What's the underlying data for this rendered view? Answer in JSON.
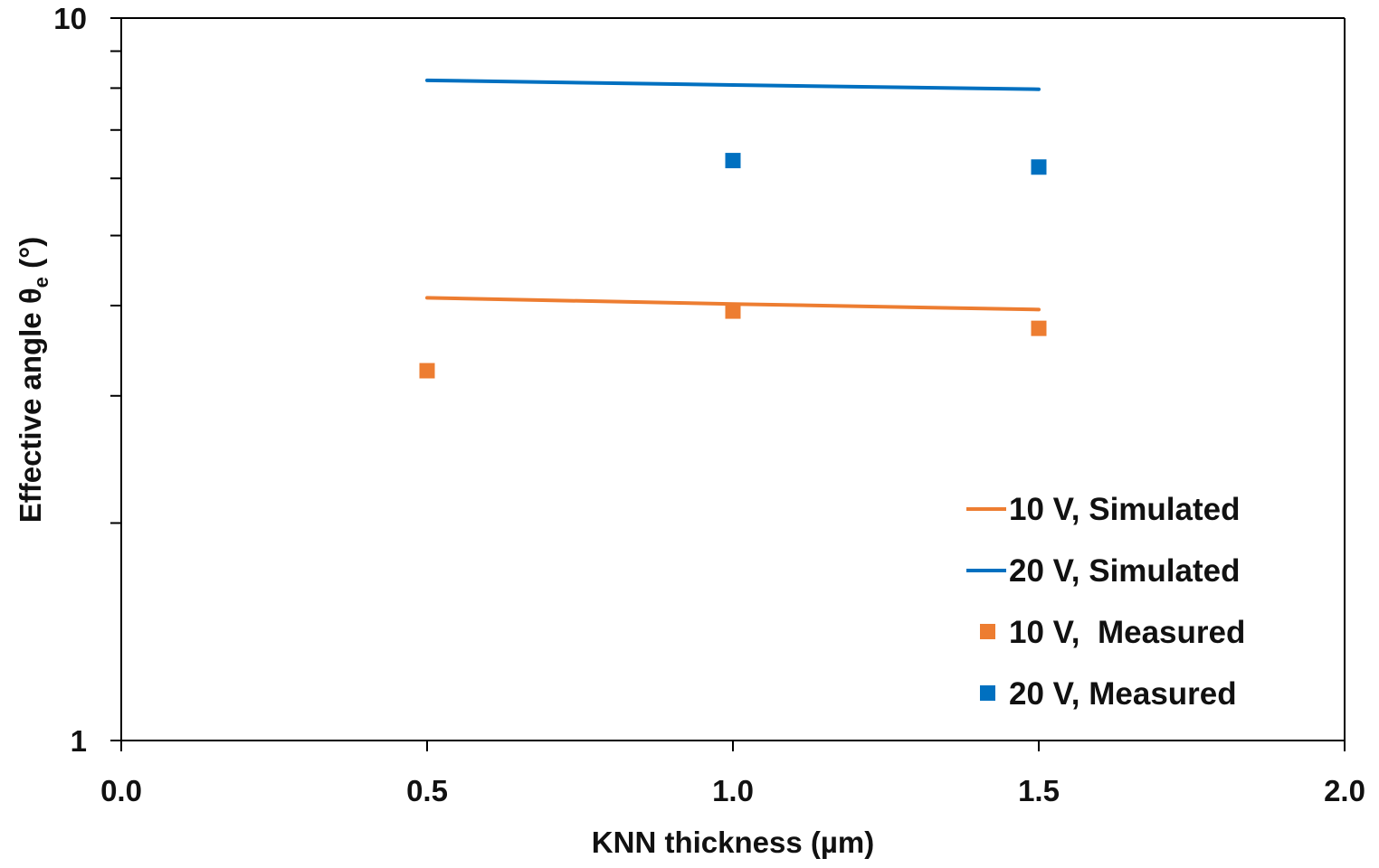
{
  "chart_data": {
    "type": "scatter",
    "xlabel": "KNN thickness (µm)",
    "ylabel_main": "Effective angle θ",
    "ylabel_sub": "e",
    "ylabel_unit": " (°)",
    "xlim": [
      0.0,
      2.0
    ],
    "ylim": [
      1,
      10
    ],
    "yscale": "log",
    "xticks": [
      0.0,
      0.5,
      1.0,
      1.5,
      2.0
    ],
    "xtick_labels": [
      "0.0",
      "0.5",
      "1.0",
      "1.5",
      "2.0"
    ],
    "yticks_labeled": [
      1,
      10
    ],
    "ytick_labels": [
      "1",
      "10"
    ],
    "yticks_minor": [
      2,
      3,
      4,
      5,
      6,
      7,
      8,
      9
    ],
    "legend_position": "bottom-right",
    "series": [
      {
        "name": "10 V, Simulated",
        "kind": "line",
        "color": "#ED7D31",
        "x": [
          0.5,
          1.0,
          1.5
        ],
        "y": [
          4.1,
          4.02,
          3.95
        ]
      },
      {
        "name": "20 V, Simulated",
        "kind": "line",
        "color": "#0070C0",
        "x": [
          0.5,
          1.0,
          1.5
        ],
        "y": [
          8.2,
          8.08,
          7.97
        ]
      },
      {
        "name": "10 V,  Measured",
        "kind": "marker",
        "color": "#ED7D31",
        "x": [
          0.5,
          1.0,
          1.5
        ],
        "y": [
          3.25,
          3.93,
          3.72
        ]
      },
      {
        "name": "20 V, Measured",
        "kind": "marker",
        "color": "#0070C0",
        "x": [
          1.0,
          1.5
        ],
        "y": [
          6.35,
          6.22
        ]
      }
    ]
  }
}
